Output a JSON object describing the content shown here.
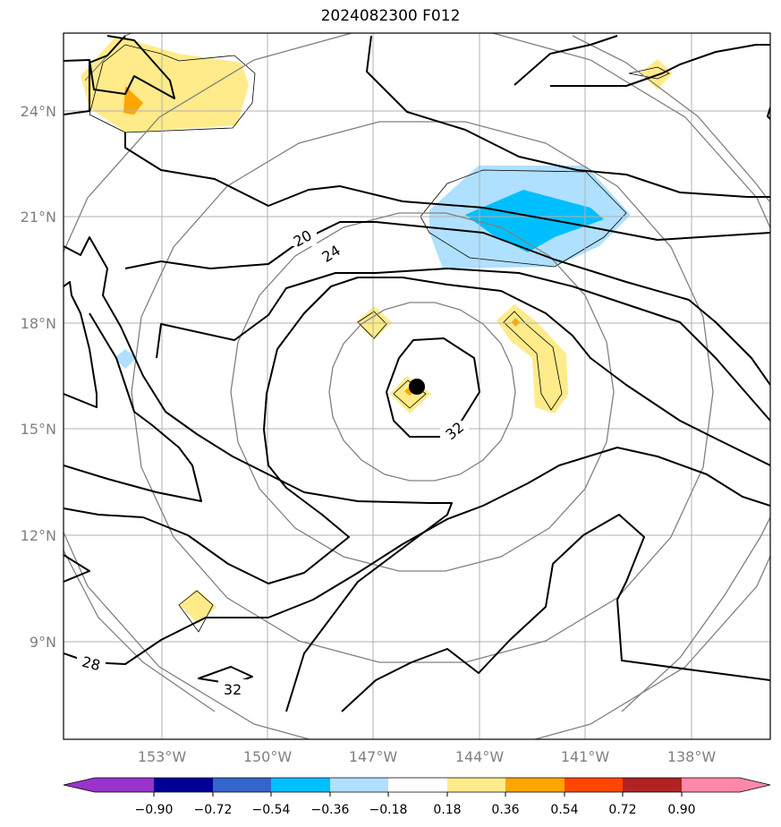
{
  "title": "2024082300 F012",
  "map": {
    "lon_range": [
      -156,
      -136
    ],
    "lat_range": [
      6.5,
      26
    ],
    "lat_labels": [
      "24°N",
      "21°N",
      "18°N",
      "15°N",
      "12°N",
      "9°N"
    ],
    "lon_labels": [
      "153°W",
      "150°W",
      "147°W",
      "144°W",
      "141°W",
      "138°W"
    ],
    "contour_labels": [
      "20",
      "24",
      "32",
      "28",
      "32"
    ],
    "storm_center": {
      "lon": -145.7,
      "lat": 16.2
    },
    "colors": {
      "contour": "#000000",
      "range_ring": "#808080",
      "grid": "#b0b0b0"
    }
  },
  "colorbar": {
    "ticks": [
      "−0.90",
      "−0.72",
      "−0.54",
      "−0.36",
      "−0.18",
      "0.18",
      "0.36",
      "0.54",
      "0.72",
      "0.90"
    ],
    "colors": [
      "#9933cc",
      "#000099",
      "#3366cc",
      "#00bfff",
      "#b0e0ff",
      "#ffffff",
      "#ffeb8a",
      "#ffa500",
      "#ff4500",
      "#b22222",
      "#ff88aa"
    ]
  }
}
